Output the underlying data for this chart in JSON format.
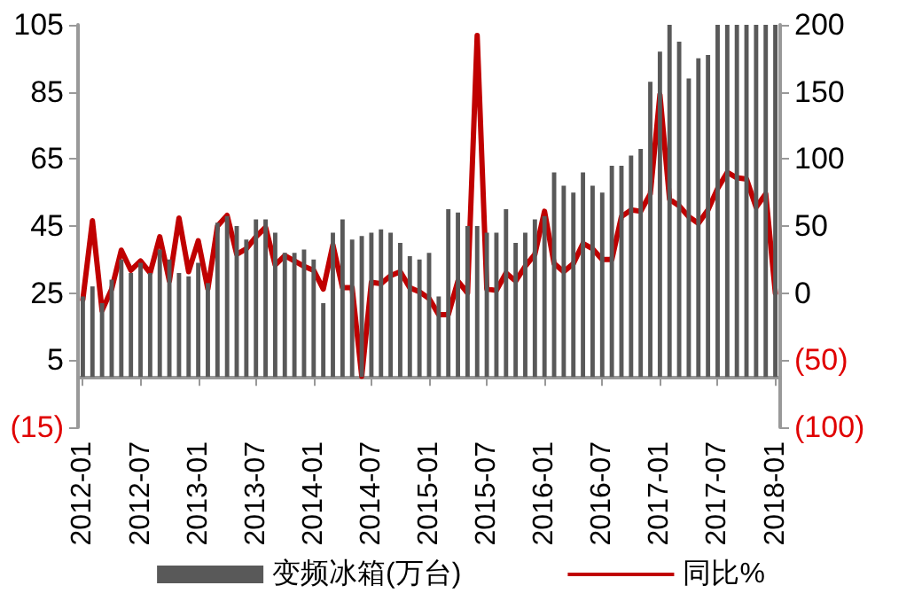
{
  "chart_data": {
    "type": "bar",
    "categories": [
      "2012-01",
      null,
      null,
      null,
      null,
      null,
      "2012-07",
      null,
      null,
      null,
      null,
      null,
      "2013-01",
      null,
      null,
      null,
      null,
      null,
      "2013-07",
      null,
      null,
      null,
      null,
      null,
      "2014-01",
      null,
      null,
      null,
      null,
      null,
      "2014-07",
      null,
      null,
      null,
      null,
      null,
      "2015-01",
      null,
      null,
      null,
      null,
      null,
      "2015-07",
      null,
      null,
      null,
      null,
      null,
      "2016-01",
      null,
      null,
      null,
      null,
      null,
      "2016-07",
      null,
      null,
      null,
      null,
      null,
      "2017-01",
      null,
      null,
      null,
      null,
      null,
      "2017-07",
      null,
      null,
      null,
      null,
      null,
      "2018-01"
    ],
    "series": [
      {
        "name": "变频冰箱(万台)",
        "color": "#595959",
        "values": [
          24,
          27,
          22,
          29,
          35,
          31,
          34,
          31,
          38,
          35,
          31,
          30,
          34,
          28,
          46,
          48,
          45,
          41,
          47,
          47,
          43,
          37,
          37,
          38,
          35,
          22,
          43,
          47,
          41,
          42,
          43,
          44,
          43,
          40,
          36,
          35,
          37,
          24,
          50,
          49,
          45,
          45,
          43,
          43,
          50,
          40,
          43,
          47,
          48,
          61,
          57,
          55,
          61,
          57,
          55,
          63,
          63,
          66,
          68,
          88,
          97,
          105,
          100,
          89,
          95,
          96,
          105,
          105,
          105,
          105,
          105,
          105,
          105
        ]
      },
      {
        "name": "同比%",
        "type": "line",
        "axis": "y2",
        "color": "#c00000",
        "values": [
          -5,
          54,
          -13,
          3,
          32,
          17,
          24,
          15,
          42,
          9,
          56,
          16,
          39,
          3,
          50,
          58,
          29,
          33,
          42,
          49,
          21,
          28,
          24,
          20,
          17,
          3,
          36,
          4,
          4,
          -62,
          8,
          7,
          13,
          16,
          4,
          1,
          -4,
          -16,
          -16,
          9,
          0,
          192,
          3,
          2,
          15,
          9,
          20,
          29,
          61,
          22,
          16,
          22,
          37,
          33,
          25,
          25,
          57,
          62,
          61,
          74,
          148,
          70,
          65,
          57,
          52,
          62,
          78,
          90,
          86,
          85,
          64,
          74,
          0
        ]
      }
    ],
    "ylim": [
      -15,
      105
    ],
    "yticks": [
      {
        "value": -15,
        "label": "(15)"
      },
      5,
      25,
      45,
      65,
      85,
      105
    ],
    "y2lim": [
      -100,
      200
    ],
    "y2ticks": [
      {
        "value": -100,
        "label": "(100)"
      },
      {
        "value": -50,
        "label": "(50)"
      },
      0,
      50,
      100,
      150,
      200
    ],
    "legend": "bottom",
    "marker": "none",
    "line_style": "solid"
  }
}
